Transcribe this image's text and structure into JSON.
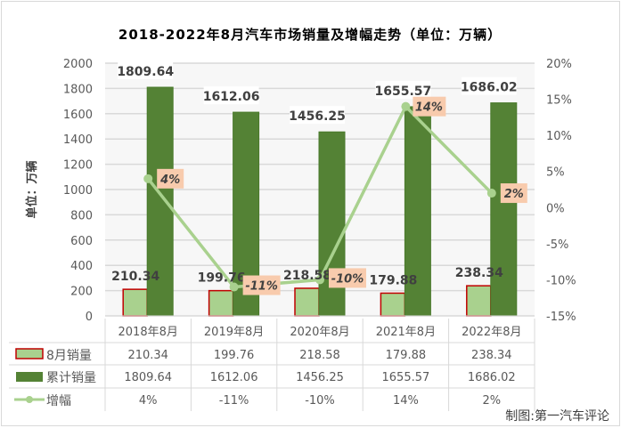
{
  "chart_data": {
    "type": "bar+line",
    "title": "2018-2022年8月汽车市场销量及增幅走势（单位：万辆）",
    "ylabel": "单位：万辆",
    "categories": [
      "2018年8月",
      "2019年8月",
      "2020年8月",
      "2021年8月",
      "2022年8月"
    ],
    "ylim": [
      0,
      2000
    ],
    "yticks": [
      "0",
      "200",
      "400",
      "600",
      "800",
      "1000",
      "1200",
      "1400",
      "1600",
      "1800",
      "2000"
    ],
    "y2lim": [
      -15,
      20
    ],
    "y2ticks": [
      "-15%",
      "-10%",
      "-5%",
      "0%",
      "5%",
      "10%",
      "15%",
      "20%"
    ],
    "grid": true,
    "series": [
      {
        "name": "8月销量",
        "type": "bar",
        "values": [
          210.34,
          199.76,
          218.58,
          179.88,
          238.34
        ],
        "labels": [
          "210.34",
          "199.76",
          "218.58",
          "179.88",
          "238.34"
        ],
        "color": "#a9d18e",
        "border": "#c00000"
      },
      {
        "name": "累计销量",
        "type": "bar",
        "values": [
          1809.64,
          1612.06,
          1456.25,
          1655.57,
          1686.02
        ],
        "labels": [
          "1809.64",
          "1612.06",
          "1456.25",
          "1655.57",
          "1686.02"
        ],
        "color": "#548235"
      },
      {
        "name": "增幅",
        "type": "line",
        "axis": "right",
        "values": [
          4,
          -11,
          -10,
          14,
          2
        ],
        "labels": [
          "4%",
          "-11%",
          "-10%",
          "14%",
          "2%"
        ],
        "color": "#a9d18e"
      }
    ],
    "legend": "data-table"
  },
  "credit": "制图:第一汽车评论"
}
